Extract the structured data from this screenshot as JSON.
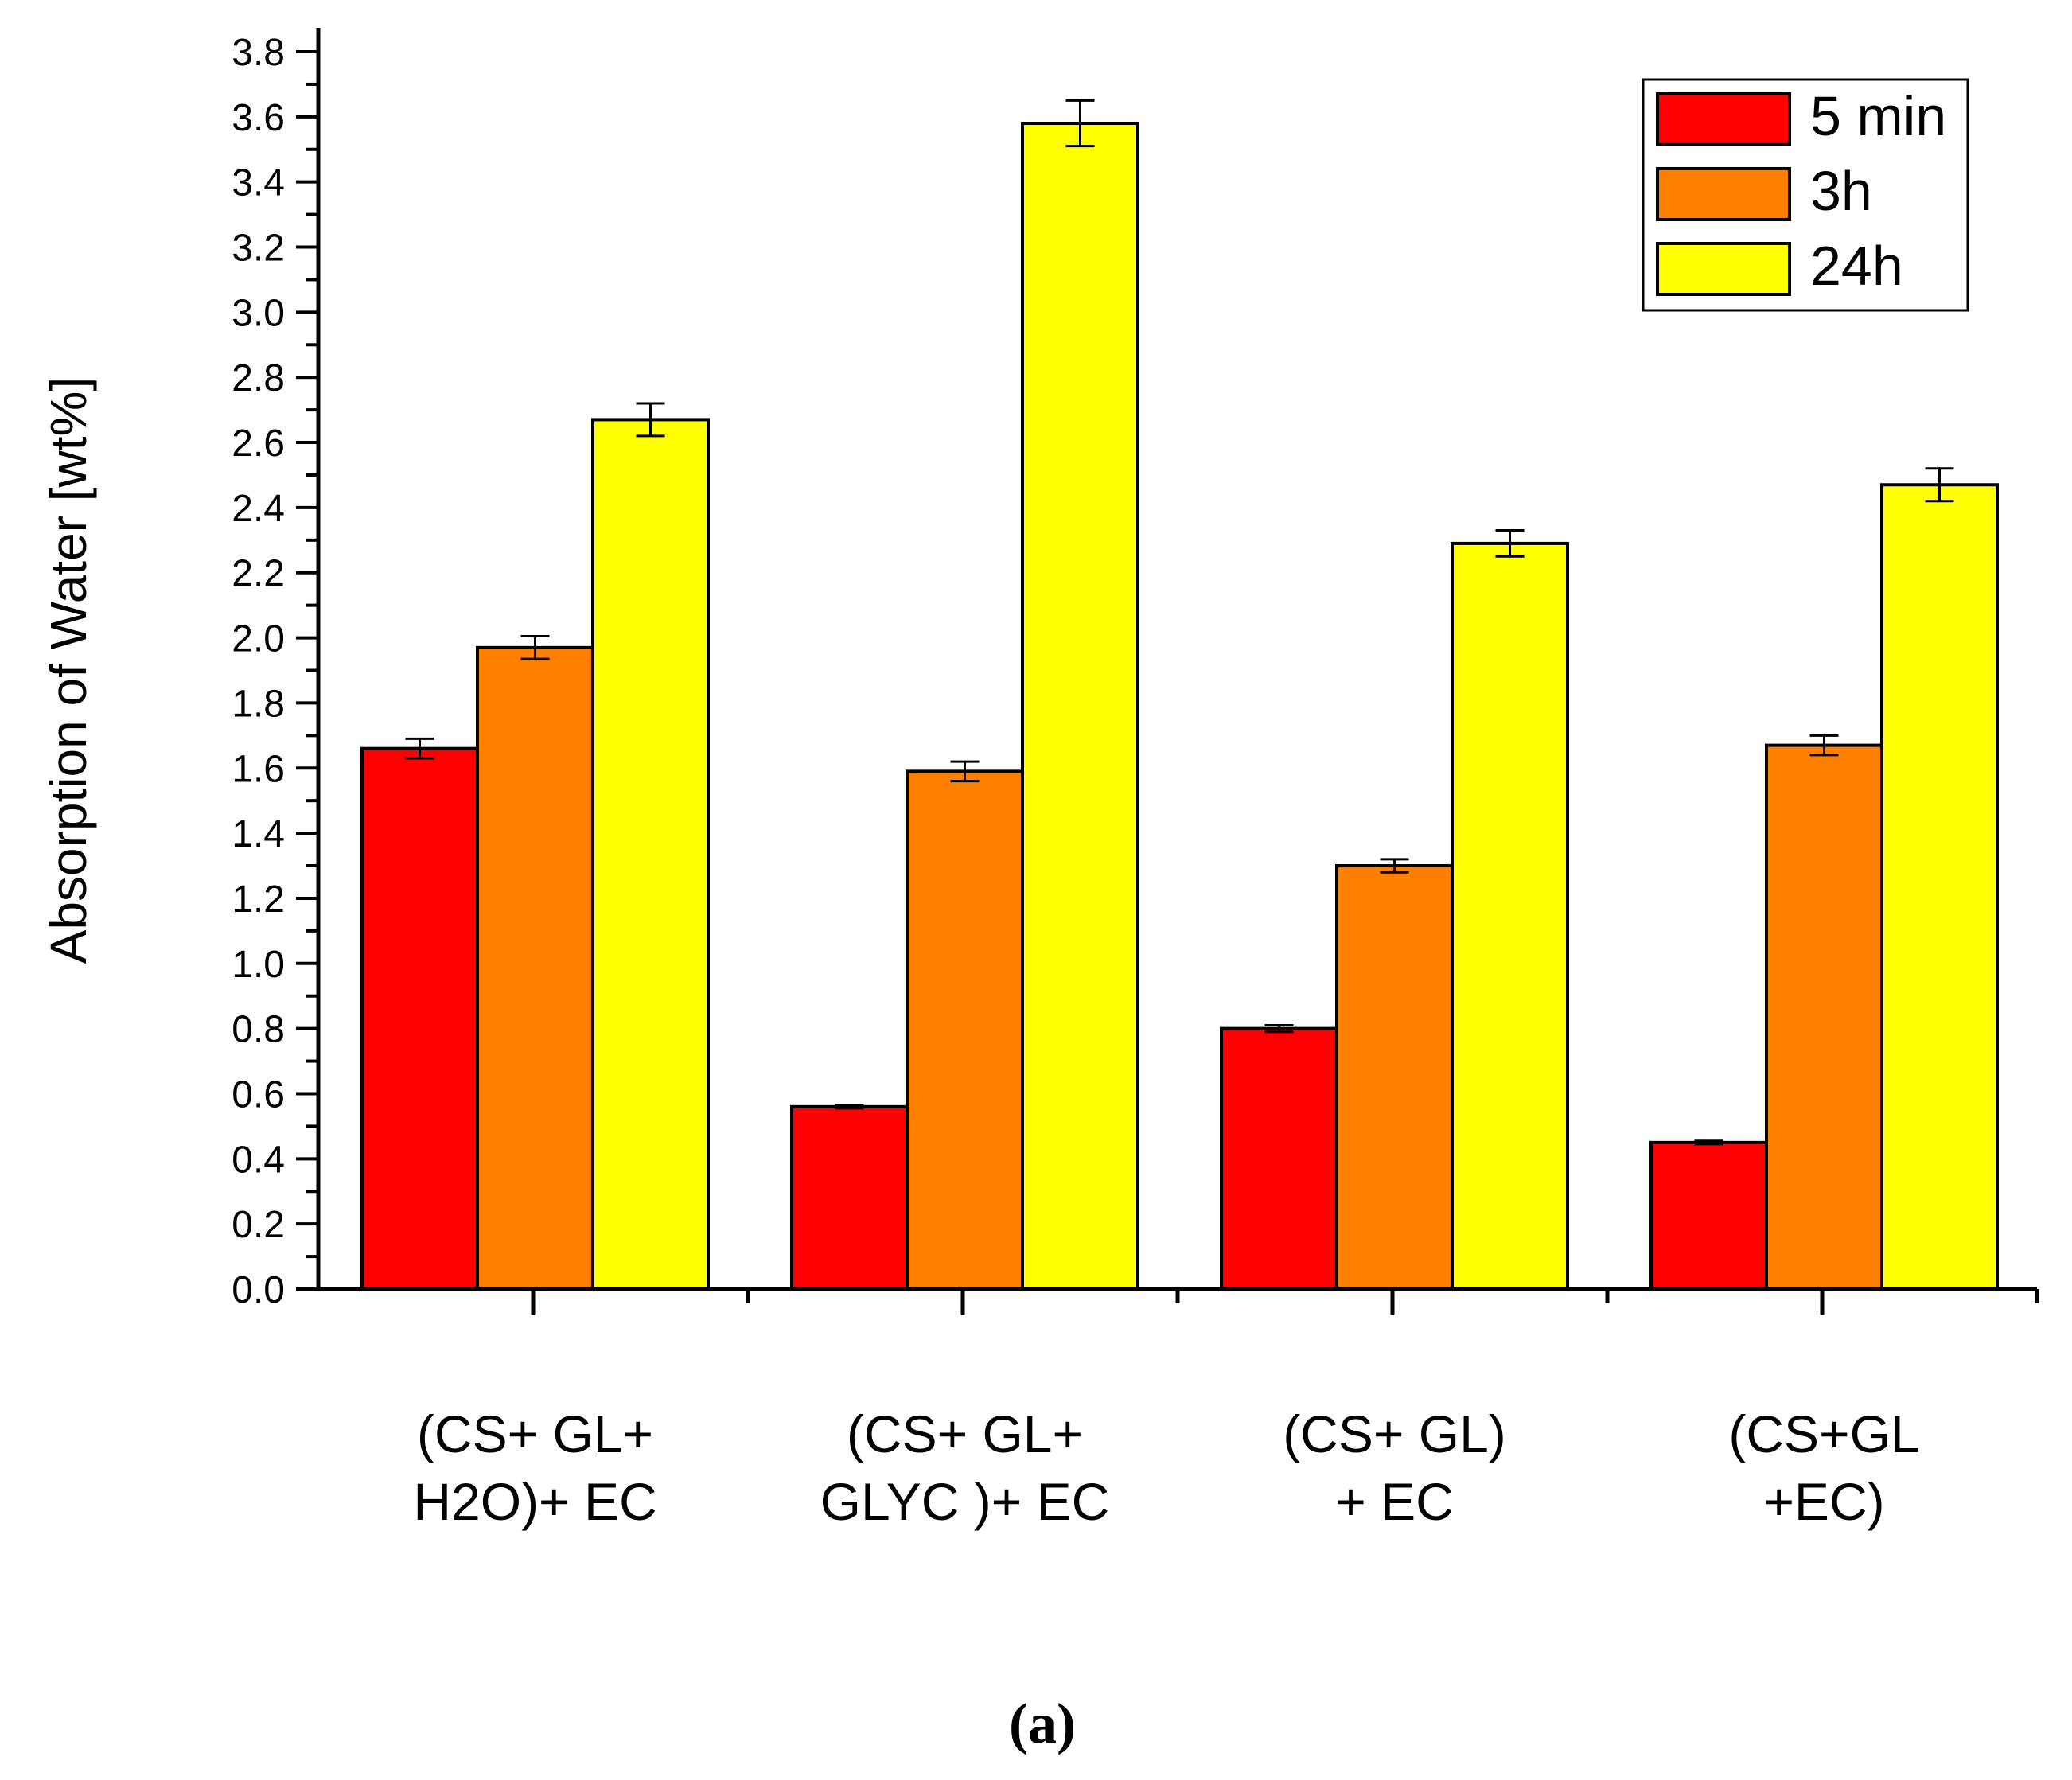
{
  "chart_data": {
    "type": "bar",
    "title": "",
    "xlabel": "",
    "ylabel": "Absorption of Water [wt%]",
    "ylim": [
      0,
      3.8
    ],
    "ytick_step": 0.2,
    "ytick_labels": [
      "0.0",
      "0.2",
      "0.4",
      "0.6",
      "0.8",
      "1.0",
      "1.2",
      "1.4",
      "1.6",
      "1.8",
      "2.0",
      "2.2",
      "2.4",
      "2.6",
      "2.8",
      "3.0",
      "3.2",
      "3.4",
      "3.6",
      "3.8"
    ],
    "categories": [
      {
        "line1": "(CS+ GL+",
        "line2": "H2O)+ EC"
      },
      {
        "line1": "(CS+ GL+",
        "line2": "GLYC )+ EC"
      },
      {
        "line1": "(CS+ GL)",
        "line2": "+ EC"
      },
      {
        "line1": "(CS+GL",
        "line2": "+EC)"
      }
    ],
    "series": [
      {
        "name": "5 min",
        "color": "#ff0000",
        "values": [
          1.66,
          0.56,
          0.8,
          0.45
        ],
        "errors": [
          0.03,
          0.005,
          0.01,
          0.005
        ]
      },
      {
        "name": "3h",
        "color": "#ff8000",
        "values": [
          1.97,
          1.59,
          1.3,
          1.67
        ],
        "errors": [
          0.035,
          0.03,
          0.02,
          0.03
        ]
      },
      {
        "name": "24h",
        "color": "#ffff00",
        "values": [
          2.67,
          3.58,
          2.29,
          2.47
        ],
        "errors": [
          0.05,
          0.07,
          0.04,
          0.05
        ]
      }
    ],
    "legend_position": "top-right",
    "grid": false
  },
  "caption": "(a)"
}
